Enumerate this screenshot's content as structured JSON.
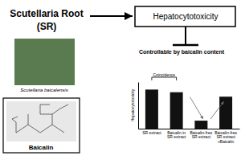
{
  "chart_data": {
    "type": "bar",
    "annotations": [
      "Scutellaria Root",
      "(SR)",
      "Scutellaria baicalensis",
      "Baicalin",
      "Hepatocytotoxicity",
      "Controllable by baicalin content",
      "Coincidence"
    ],
    "ylabel": "Hepatocytotoxicity",
    "categories": [
      "SR extract",
      "Baicalin in\nSR extract",
      "Baicalin-free\nSR extract",
      "Baicalin-free\nSR extract\n+Baicalin"
    ],
    "values": [
      0.88,
      0.82,
      0.18,
      0.72
    ],
    "color": "#111111",
    "ylim": [
      0,
      1.05
    ],
    "tick_labels": "x"
  }
}
